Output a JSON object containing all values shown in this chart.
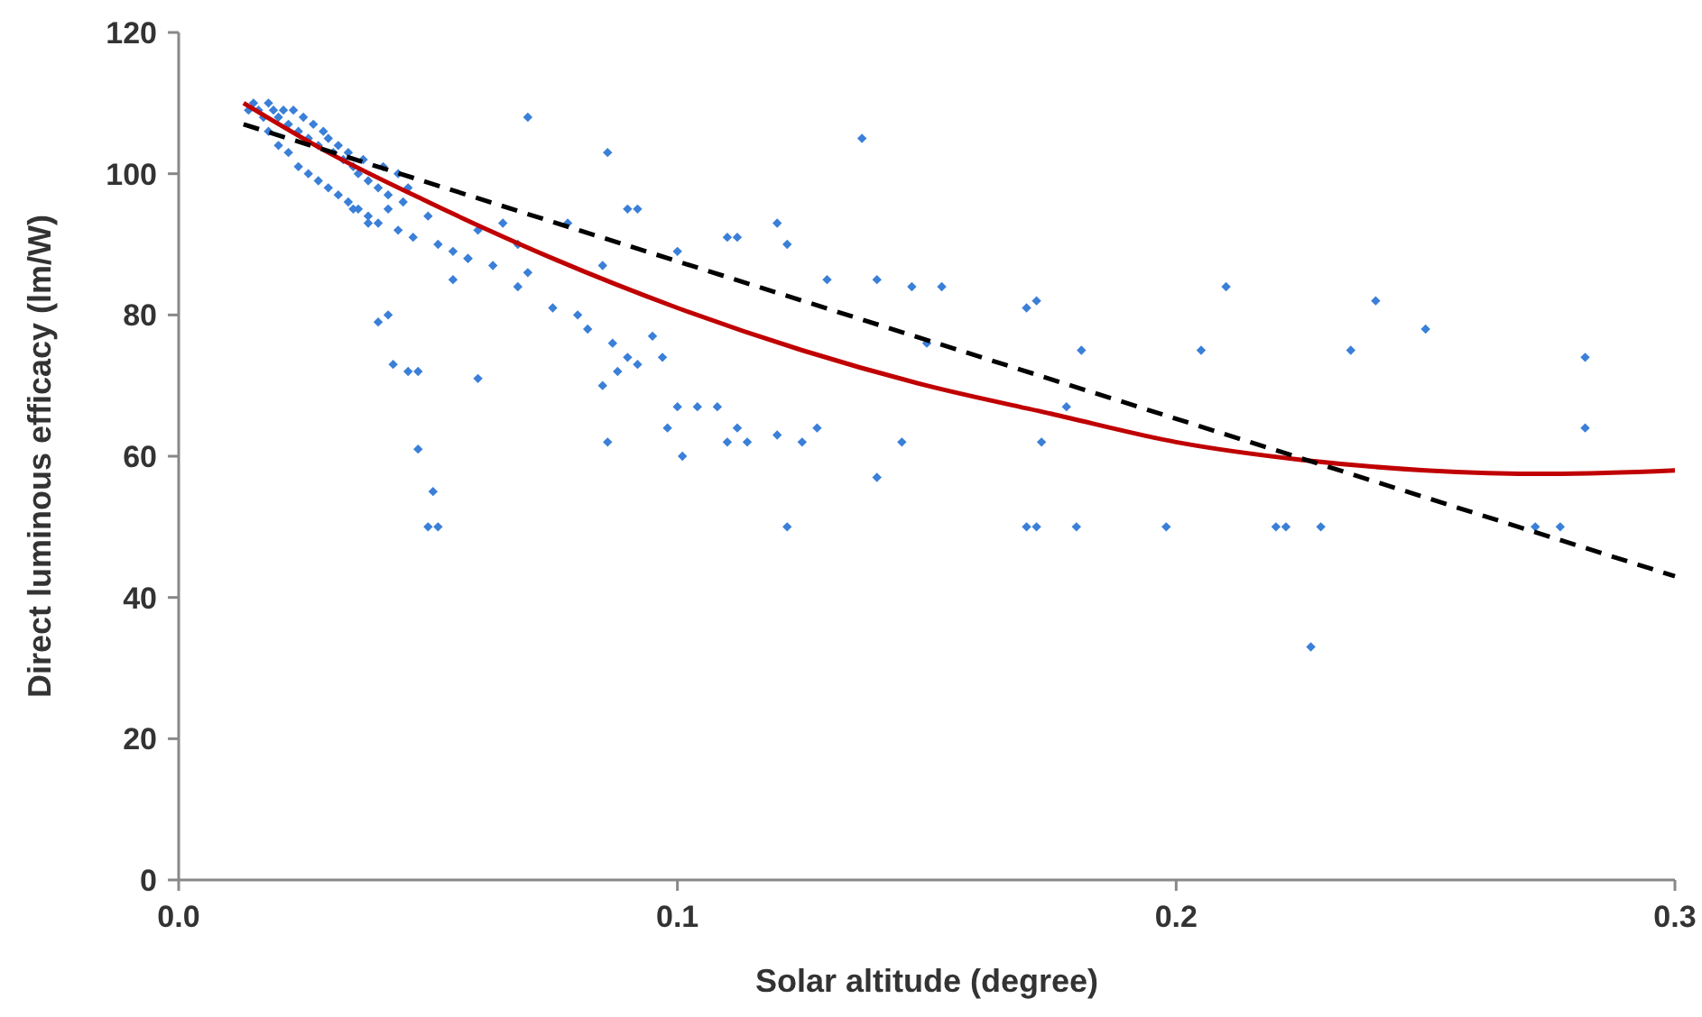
{
  "chart_data": {
    "type": "scatter",
    "xlabel": "Solar altitude (degree)",
    "ylabel": "Direct luminous efficacy (lm/W)",
    "xlim": [
      0,
      0.3
    ],
    "xticks": [
      {
        "value": 0,
        "label": "0.0"
      },
      0.1,
      0.2,
      0.3
    ],
    "ylim": [
      0,
      120
    ],
    "yticks": [
      0,
      20,
      40,
      60,
      80,
      100,
      120
    ],
    "grid": false,
    "series": [
      {
        "color": "#3a7fd8",
        "marker": "diamond",
        "x": [
          0.014,
          0.015,
          0.016,
          0.017,
          0.018,
          0.019,
          0.02,
          0.021,
          0.022,
          0.023,
          0.024,
          0.025,
          0.026,
          0.027,
          0.028,
          0.029,
          0.03,
          0.031,
          0.032,
          0.033,
          0.034,
          0.035,
          0.036,
          0.037,
          0.038,
          0.04,
          0.041,
          0.042,
          0.044,
          0.045,
          0.046,
          0.018,
          0.02,
          0.022,
          0.024,
          0.026,
          0.028,
          0.03,
          0.032,
          0.034,
          0.036,
          0.038,
          0.04,
          0.042,
          0.044,
          0.047,
          0.05,
          0.052,
          0.055,
          0.058,
          0.06,
          0.063,
          0.065,
          0.068,
          0.07,
          0.05,
          0.052,
          0.048,
          0.051,
          0.046,
          0.043,
          0.048,
          0.042,
          0.07,
          0.086,
          0.137,
          0.078,
          0.085,
          0.09,
          0.092,
          0.1,
          0.11,
          0.112,
          0.12,
          0.122,
          0.13,
          0.14,
          0.147,
          0.153,
          0.15,
          0.17,
          0.172,
          0.181,
          0.205,
          0.21,
          0.235,
          0.24,
          0.25,
          0.282,
          0.282,
          0.227,
          0.173,
          0.178,
          0.17,
          0.172,
          0.18,
          0.198,
          0.22,
          0.222,
          0.229,
          0.272,
          0.277,
          0.122,
          0.14,
          0.145,
          0.12,
          0.101,
          0.11,
          0.112,
          0.114,
          0.125,
          0.128,
          0.108,
          0.104,
          0.1,
          0.098,
          0.086,
          0.088,
          0.087,
          0.09,
          0.092,
          0.095,
          0.097,
          0.08,
          0.082,
          0.085,
          0.075,
          0.068,
          0.06,
          0.058,
          0.055,
          0.04,
          0.038,
          0.035
        ],
        "values": [
          109,
          110,
          109,
          108,
          110,
          109,
          108,
          109,
          107,
          109,
          106,
          108,
          105,
          107,
          104,
          106,
          105,
          103,
          104,
          102,
          103,
          101,
          100,
          102,
          99,
          98,
          101,
          97,
          100,
          96,
          98,
          106,
          104,
          103,
          101,
          100,
          99,
          98,
          97,
          96,
          95,
          94,
          93,
          95,
          92,
          91,
          94,
          90,
          89,
          88,
          92,
          87,
          93,
          90,
          86,
          50,
          50,
          61,
          55,
          72,
          73,
          72,
          80,
          108,
          103,
          105,
          93,
          87,
          95,
          95,
          89,
          91,
          91,
          93,
          90,
          85,
          85,
          84,
          84,
          76,
          81,
          82,
          75,
          75,
          84,
          75,
          82,
          78,
          74,
          64,
          33,
          62,
          67,
          50,
          50,
          50,
          50,
          50,
          50,
          50,
          50,
          50,
          50,
          57,
          62,
          63,
          60,
          62,
          64,
          62,
          62,
          64,
          67,
          67,
          67,
          64,
          62,
          72,
          76,
          74,
          73,
          77,
          74,
          80,
          78,
          70,
          81,
          84,
          71,
          88,
          85,
          79,
          93,
          95
        ]
      },
      {
        "type": "line",
        "color": "#c00000",
        "line_style": "solid",
        "marker": "none",
        "x": [
          0.013,
          0.03,
          0.05,
          0.075,
          0.1,
          0.125,
          0.15,
          0.175,
          0.2,
          0.225,
          0.25,
          0.275,
          0.3
        ],
        "values": [
          110,
          103,
          96,
          88,
          81,
          75,
          70,
          66,
          62,
          59.5,
          58,
          57.5,
          58
        ]
      },
      {
        "type": "line",
        "color": "#000000",
        "line_style": "dashed",
        "marker": "none",
        "x": [
          0.013,
          0.3
        ],
        "values": [
          107,
          43
        ]
      }
    ]
  }
}
